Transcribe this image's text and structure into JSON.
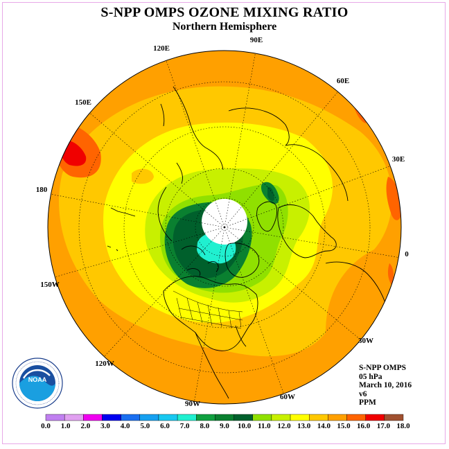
{
  "title": "S-NPP OMPS OZONE MIXING RATIO",
  "subtitle": "Northern Hemisphere",
  "info": {
    "instrument": "S-NPP OMPS",
    "level": "05 hPa",
    "date": "March 10, 2016",
    "version": "v6",
    "units": "PPM"
  },
  "longitude_labels": [
    "90E",
    "60E",
    "30E",
    "0",
    "30W",
    "60W",
    "90W",
    "120W",
    "150W",
    "180",
    "150E",
    "120E"
  ],
  "colorbar": {
    "ticks": [
      "0.0",
      "1.0",
      "2.0",
      "3.0",
      "4.0",
      "5.0",
      "6.0",
      "7.0",
      "8.0",
      "9.0",
      "10.0",
      "11.0",
      "12.0",
      "13.0",
      "14.0",
      "15.0",
      "16.0",
      "17.0",
      "18.0"
    ],
    "colors": [
      "#c080f0",
      "#e0a0f0",
      "#f000f0",
      "#0000f0",
      "#1a6ff0",
      "#16a0f0",
      "#18c8f0",
      "#20f0d0",
      "#10a040",
      "#0a8030",
      "#00602c",
      "#90e000",
      "#c8f000",
      "#ffff00",
      "#ffc800",
      "#ffa000",
      "#ff6400",
      "#f00000",
      "#a05030"
    ]
  },
  "logo": {
    "text": "NOAA",
    "ring_text": "NATIONAL OCEANIC AND ATMOSPHERIC ADMINISTRATION · U.S. DEPARTMENT OF COMMERCE"
  },
  "map_colors": {
    "outer": "#ffa000",
    "band14": "#ffc800",
    "band13": "#ffff00",
    "band12": "#c8f000",
    "band11": "#90e000",
    "band10": "#00602c",
    "band9": "#0a8030",
    "band8": "#20f0d0",
    "band15": "#ff6400",
    "band16": "#f00000",
    "no_data": "#ffffff"
  }
}
